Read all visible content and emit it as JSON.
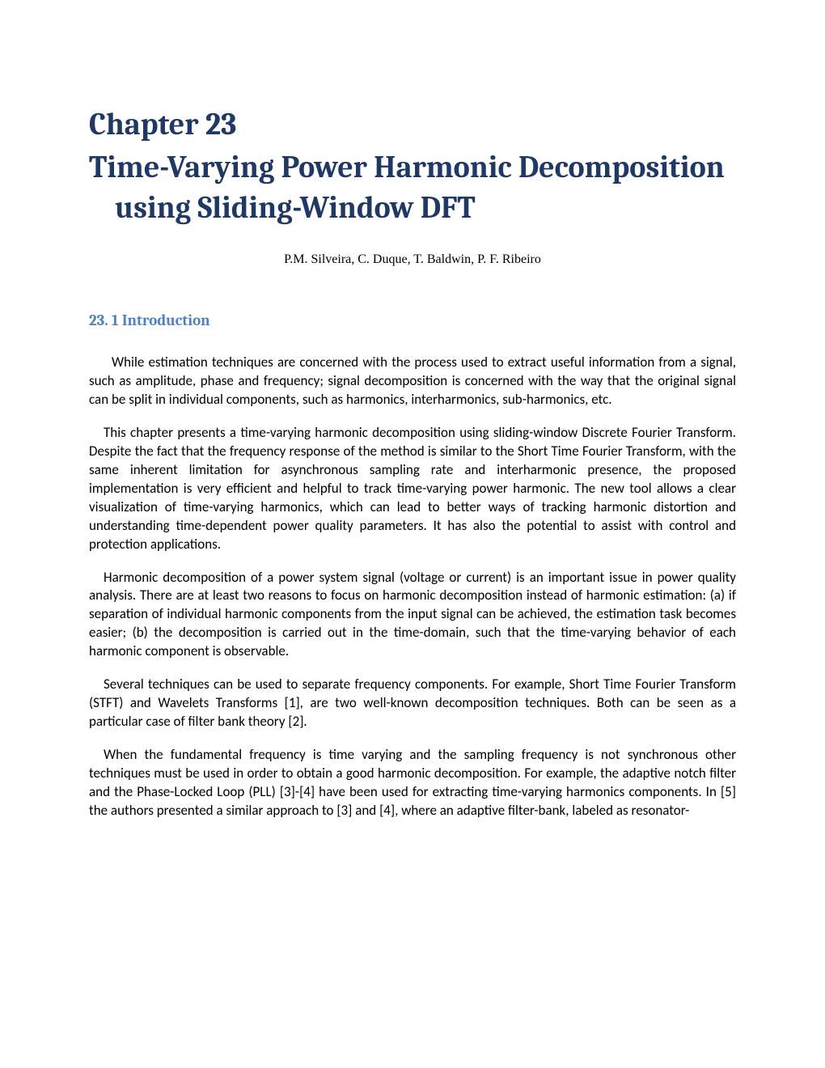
{
  "chapter": {
    "number": "Chapter 23",
    "title": "Time-Varying Power Harmonic Decomposition using Sliding-Window DFT",
    "authors": "P.M. Silveira, C. Duque, T. Baldwin, P. F. Ribeiro"
  },
  "section": {
    "heading": "23. 1 Introduction"
  },
  "paragraphs": {
    "p1": "While estimation techniques are concerned with the process used to extract useful information from  a signal, such as amplitude, phase and frequency; signal decomposition is concerned with the way that the original signal can be split in individual components, such as harmonics, interharmonics, sub-harmonics, etc.",
    "p2": "This chapter presents a time-varying harmonic decomposition using sliding-window Discrete Fourier Transform. Despite the fact that the frequency response of the method is similar to the Short Time Fourier Transform, with the same inherent limitation for asynchronous sampling rate and interharmonic presence, the proposed implementation is very efficient and helpful to track time-varying power harmonic. The new tool allows a clear visualization of time-varying harmonics, which can lead to better ways of tracking harmonic distortion and understanding time-dependent power quality parameters.  It has also the potential to assist with control and protection applications.",
    "p3": "Harmonic decomposition of a power system signal (voltage or current) is an important issue in power quality analysis. There are at least two reasons to focus on harmonic decomposition instead of harmonic estimation: (a) if separation of individual harmonic components from the input signal can be achieved, the estimation task becomes easier; (b) the decomposition is carried out in the time-domain, such that the time-varying behavior of each harmonic component is observable.",
    "p4": "Several techniques can be used to separate frequency components. For example, Short Time Fourier Transform (STFT) and Wavelets Transforms [1], are two well-known decomposition techniques. Both can be seen as a particular case of filter bank theory [2].",
    "p5": "When the fundamental frequency is time varying and the sampling frequency is not synchronous other techniques must be used in order to obtain a good harmonic decomposition. For example, the adaptive notch filter and the Phase-Locked Loop (PLL) [3]-[4] have been used for extracting time-varying harmonics components. In [5] the authors presented a similar approach to [3] and [4], where an adaptive filter-bank, labeled as resonator-"
  },
  "styles": {
    "heading_color": "#1f3864",
    "section_color": "#4f81bd",
    "body_color": "#000000",
    "background_color": "#ffffff",
    "chapter_fontsize": 38,
    "section_fontsize": 19,
    "body_fontsize": 17,
    "authors_fontsize": 16
  }
}
